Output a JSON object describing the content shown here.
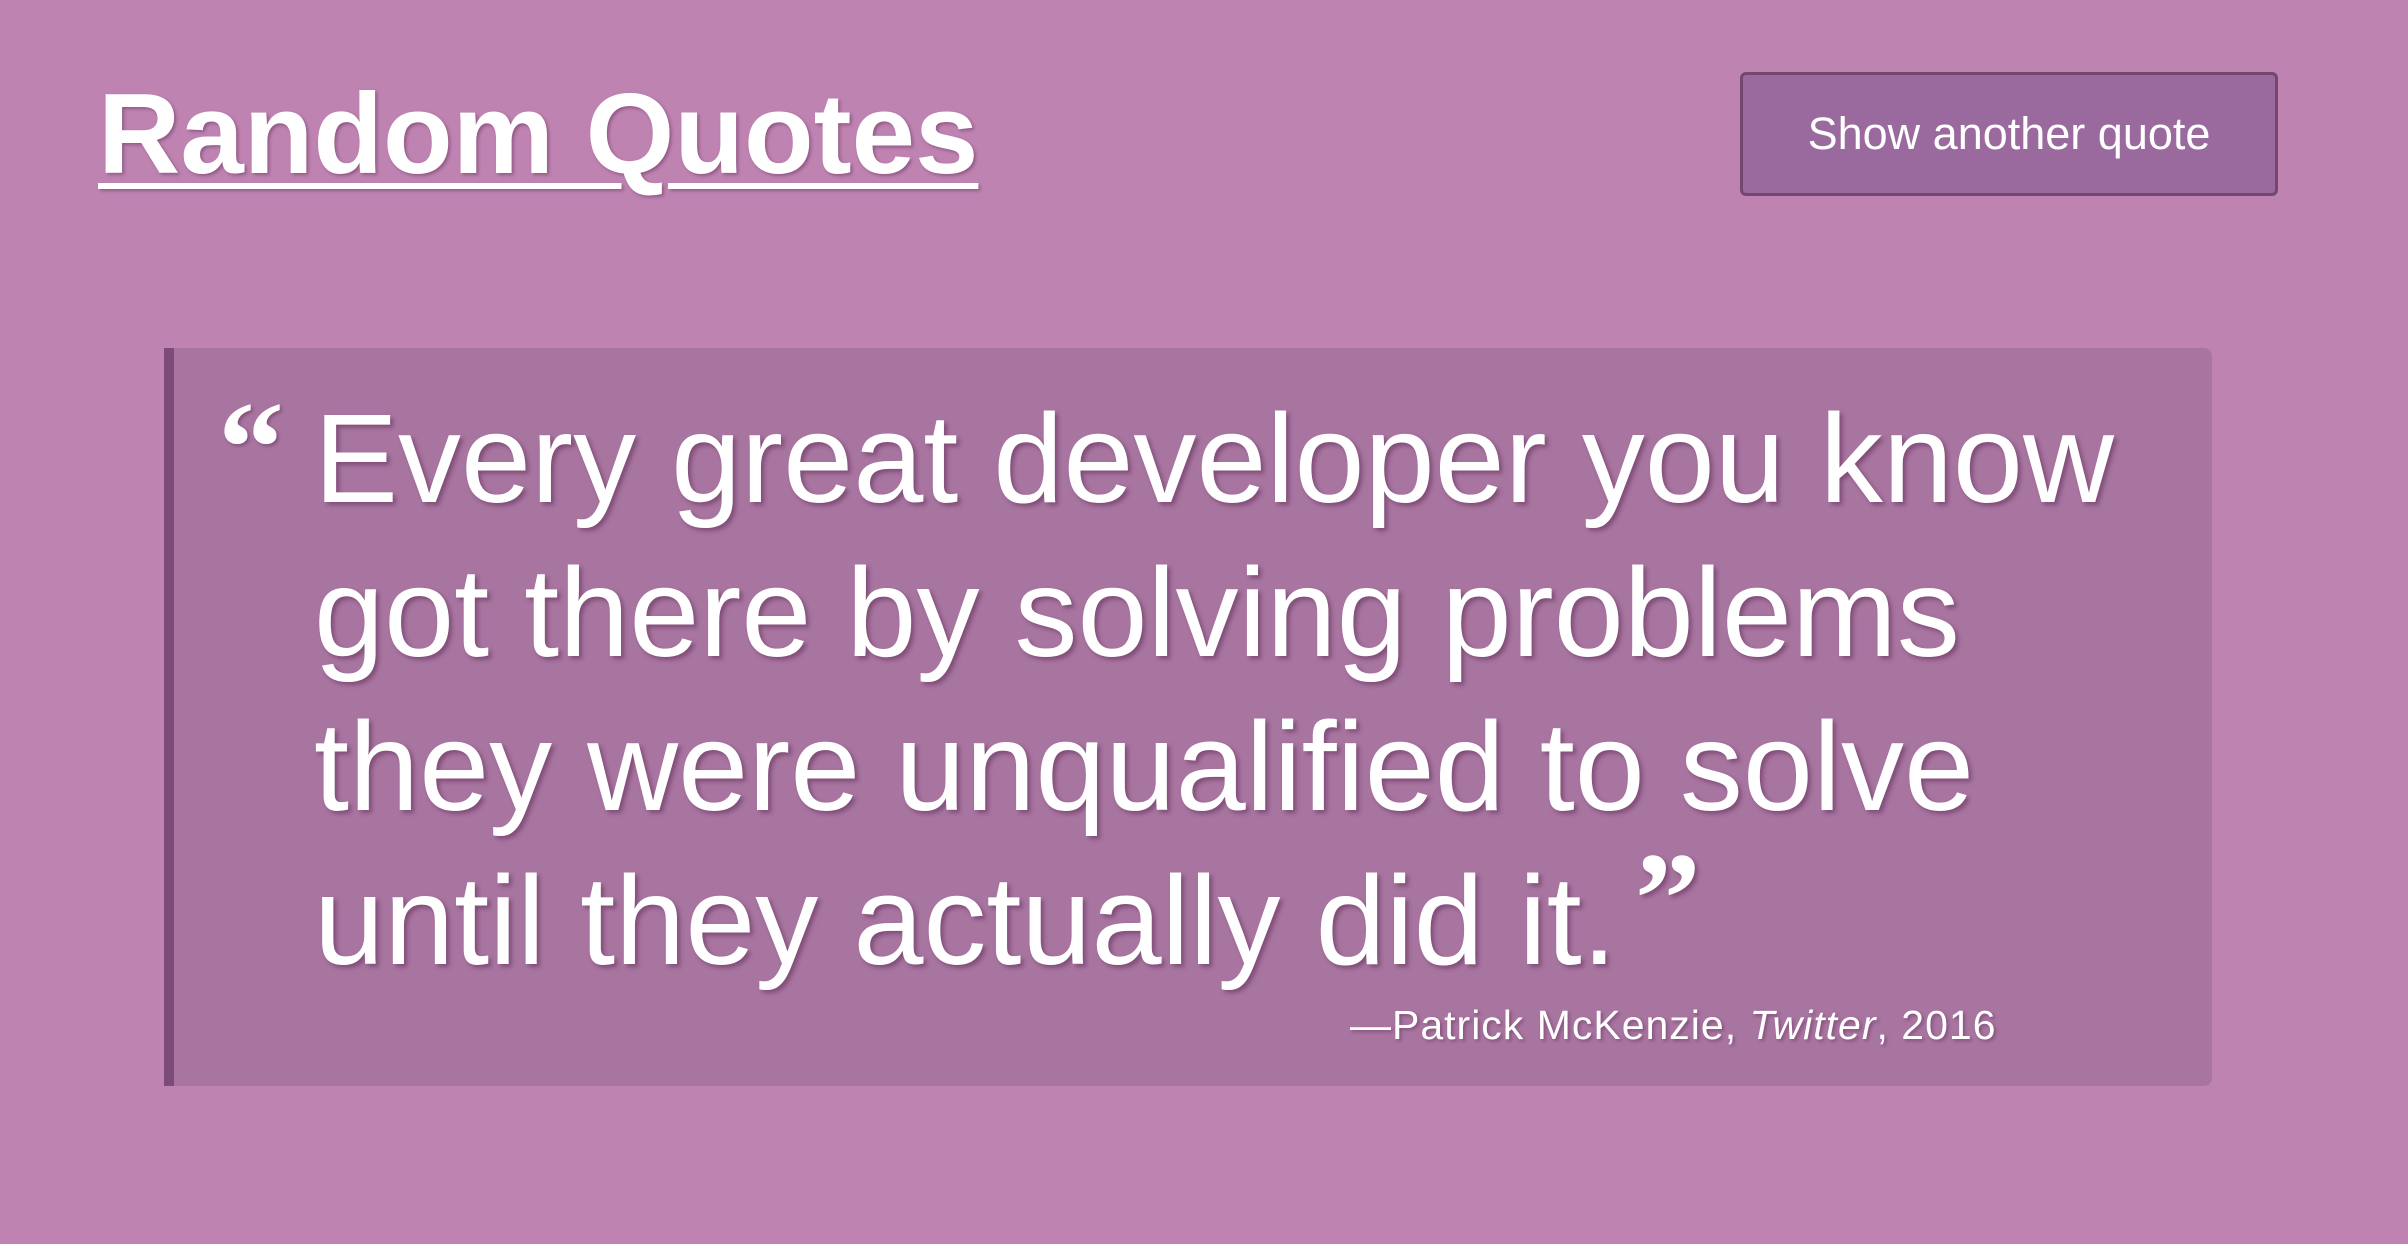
{
  "header": {
    "title": "Random Quotes",
    "button_label": "Show another quote"
  },
  "quote": {
    "open_mark": "“",
    "text": "Every great developer you know got there by solving problems they were unqualified to solve until they actually did it.",
    "close_mark": "”",
    "citation": {
      "dash": "—",
      "author": "Patrick McKenzie",
      "separator_1": ", ",
      "source": "Twitter",
      "separator_2": ", ",
      "year": "2016"
    }
  },
  "colors": {
    "background": "#bf83b2",
    "card": "#a874a0",
    "card_border": "#7d4b77",
    "button": "#9a6a9e",
    "button_border": "#74476f",
    "text": "#ffffff"
  }
}
